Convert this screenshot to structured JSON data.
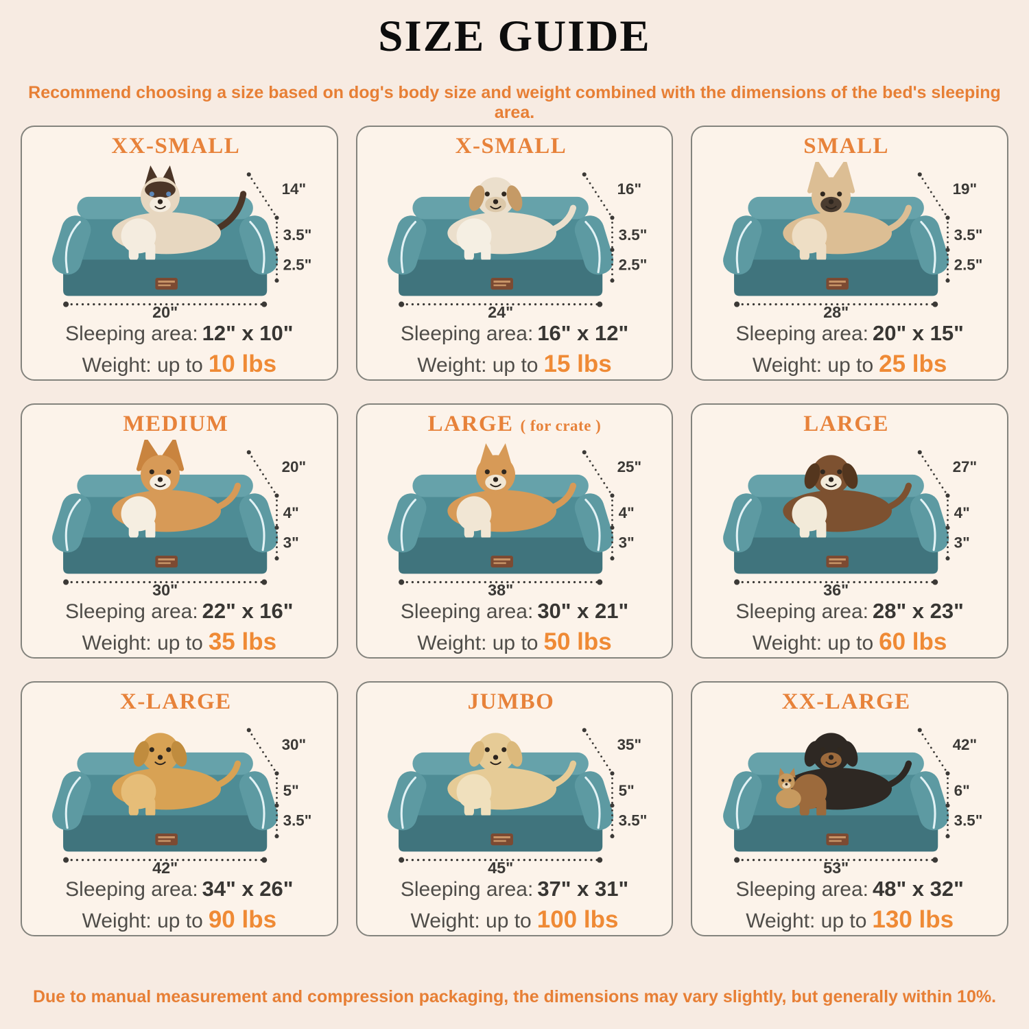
{
  "page": {
    "title": "SIZE GUIDE",
    "subtitle": "Recommend choosing a size based on dog's body size and weight combined with the dimensions of the bed's sleeping area.",
    "footer": "Due to manual measurement and compression packaging, the dimensions may vary slightly, but generally within 10%.",
    "colors": {
      "background": "#f7ebe2",
      "card_background": "#fcf3ea",
      "accent_orange": "#e77f35",
      "weight_orange": "#ef8a35",
      "text_dark": "#383633",
      "text_gray": "#4f4d49",
      "bed_teal": "#4e8c95",
      "bed_teal_dark": "#40747d",
      "bed_bolster_teal": "#66a2aa",
      "piping_blue": "#e2f2f5",
      "tag_brown": "#7c4a32"
    }
  },
  "labels": {
    "sleeping_area": "Sleeping area:",
    "weight": "Weight: up to"
  },
  "cards": [
    {
      "title": "XX-SMALL",
      "title_suffix": "",
      "animal": "cat",
      "dims": {
        "width": "14\"",
        "bolster_height": "3.5\"",
        "base_height": "2.5\"",
        "length": "20\""
      },
      "sleeping_area": "12\" x 10\"",
      "weight": "10 lbs"
    },
    {
      "title": "X-SMALL",
      "title_suffix": "",
      "animal": "shih-tzu",
      "dims": {
        "width": "16\"",
        "bolster_height": "3.5\"",
        "base_height": "2.5\"",
        "length": "24\""
      },
      "sleeping_area": "16\" x 12\"",
      "weight": "15 lbs"
    },
    {
      "title": "SMALL",
      "title_suffix": "",
      "animal": "french-bulldog",
      "dims": {
        "width": "19\"",
        "bolster_height": "3.5\"",
        "base_height": "2.5\"",
        "length": "28\""
      },
      "sleeping_area": "20\" x 15\"",
      "weight": "25 lbs"
    },
    {
      "title": "MEDIUM",
      "title_suffix": "",
      "animal": "corgi",
      "dims": {
        "width": "20\"",
        "bolster_height": "4\"",
        "base_height": "3\"",
        "length": "30\""
      },
      "sleeping_area": "22\" x 16\"",
      "weight": "35 lbs"
    },
    {
      "title": "LARGE",
      "title_suffix": "( for crate )",
      "animal": "shiba-inu",
      "dims": {
        "width": "25\"",
        "bolster_height": "4\"",
        "base_height": "3\"",
        "length": "38\""
      },
      "sleeping_area": "30\" x 21\"",
      "weight": "50 lbs"
    },
    {
      "title": "LARGE",
      "title_suffix": "",
      "animal": "border-collie",
      "dims": {
        "width": "27\"",
        "bolster_height": "4\"",
        "base_height": "3\"",
        "length": "36\""
      },
      "sleeping_area": "28\" x 23\"",
      "weight": "60 lbs"
    },
    {
      "title": "X-LARGE",
      "title_suffix": "",
      "animal": "golden-retriever",
      "dims": {
        "width": "30\"",
        "bolster_height": "5\"",
        "base_height": "3.5\"",
        "length": "42\""
      },
      "sleeping_area": "34\" x 26\"",
      "weight": "90 lbs"
    },
    {
      "title": "JUMBO",
      "title_suffix": "",
      "animal": "labrador",
      "dims": {
        "width": "35\"",
        "bolster_height": "5\"",
        "base_height": "3.5\"",
        "length": "45\""
      },
      "sleeping_area": "37\" x 31\"",
      "weight": "100 lbs"
    },
    {
      "title": "XX-LARGE",
      "title_suffix": "",
      "animal": "rottweiler-with-chihuahua",
      "dims": {
        "width": "42\"",
        "bolster_height": "6\"",
        "base_height": "3.5\"",
        "length": "53\""
      },
      "sleeping_area": "48\" x 32\"",
      "weight": "130 lbs"
    }
  ]
}
